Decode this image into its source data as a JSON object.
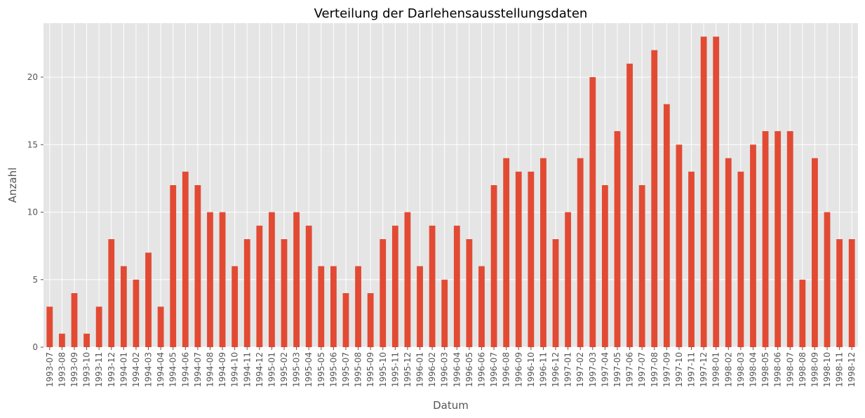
{
  "chart_data": {
    "type": "bar",
    "title": "Verteilung der Darlehensausstellungsdaten",
    "xlabel": "Datum",
    "ylabel": "Anzahl",
    "ylim": [
      0,
      24
    ],
    "yticks": [
      0,
      5,
      10,
      15,
      20
    ],
    "grid": true,
    "legend": "none",
    "bar_color": "#E24A33",
    "background_color": "#E5E5E5",
    "grid_color": "#FFFFFF",
    "categories": [
      "1993-07",
      "1993-08",
      "1993-09",
      "1993-10",
      "1993-11",
      "1993-12",
      "1994-01",
      "1994-02",
      "1994-03",
      "1994-04",
      "1994-05",
      "1994-06",
      "1994-07",
      "1994-08",
      "1994-09",
      "1994-10",
      "1994-11",
      "1994-12",
      "1995-01",
      "1995-02",
      "1995-03",
      "1995-04",
      "1995-05",
      "1995-06",
      "1995-07",
      "1995-08",
      "1995-09",
      "1995-10",
      "1995-11",
      "1995-12",
      "1996-01",
      "1996-02",
      "1996-03",
      "1996-04",
      "1996-05",
      "1996-06",
      "1996-07",
      "1996-08",
      "1996-09",
      "1996-10",
      "1996-11",
      "1996-12",
      "1997-01",
      "1997-02",
      "1997-03",
      "1997-04",
      "1997-05",
      "1997-06",
      "1997-07",
      "1997-08",
      "1997-09",
      "1997-10",
      "1997-11",
      "1997-12",
      "1998-01",
      "1998-02",
      "1998-03",
      "1998-04",
      "1998-05",
      "1998-06",
      "1998-07",
      "1998-08",
      "1998-09",
      "1998-10",
      "1998-11",
      "1998-12"
    ],
    "values": [
      3,
      1,
      4,
      1,
      3,
      8,
      6,
      5,
      7,
      3,
      12,
      13,
      12,
      10,
      10,
      6,
      8,
      9,
      10,
      8,
      10,
      9,
      6,
      6,
      4,
      6,
      4,
      8,
      9,
      10,
      6,
      9,
      5,
      9,
      8,
      6,
      12,
      14,
      13,
      13,
      14,
      8,
      10,
      14,
      20,
      12,
      16,
      21,
      12,
      22,
      18,
      15,
      13,
      23,
      23,
      14,
      13,
      15,
      16,
      16,
      16,
      5,
      14,
      10,
      8,
      8
    ]
  }
}
